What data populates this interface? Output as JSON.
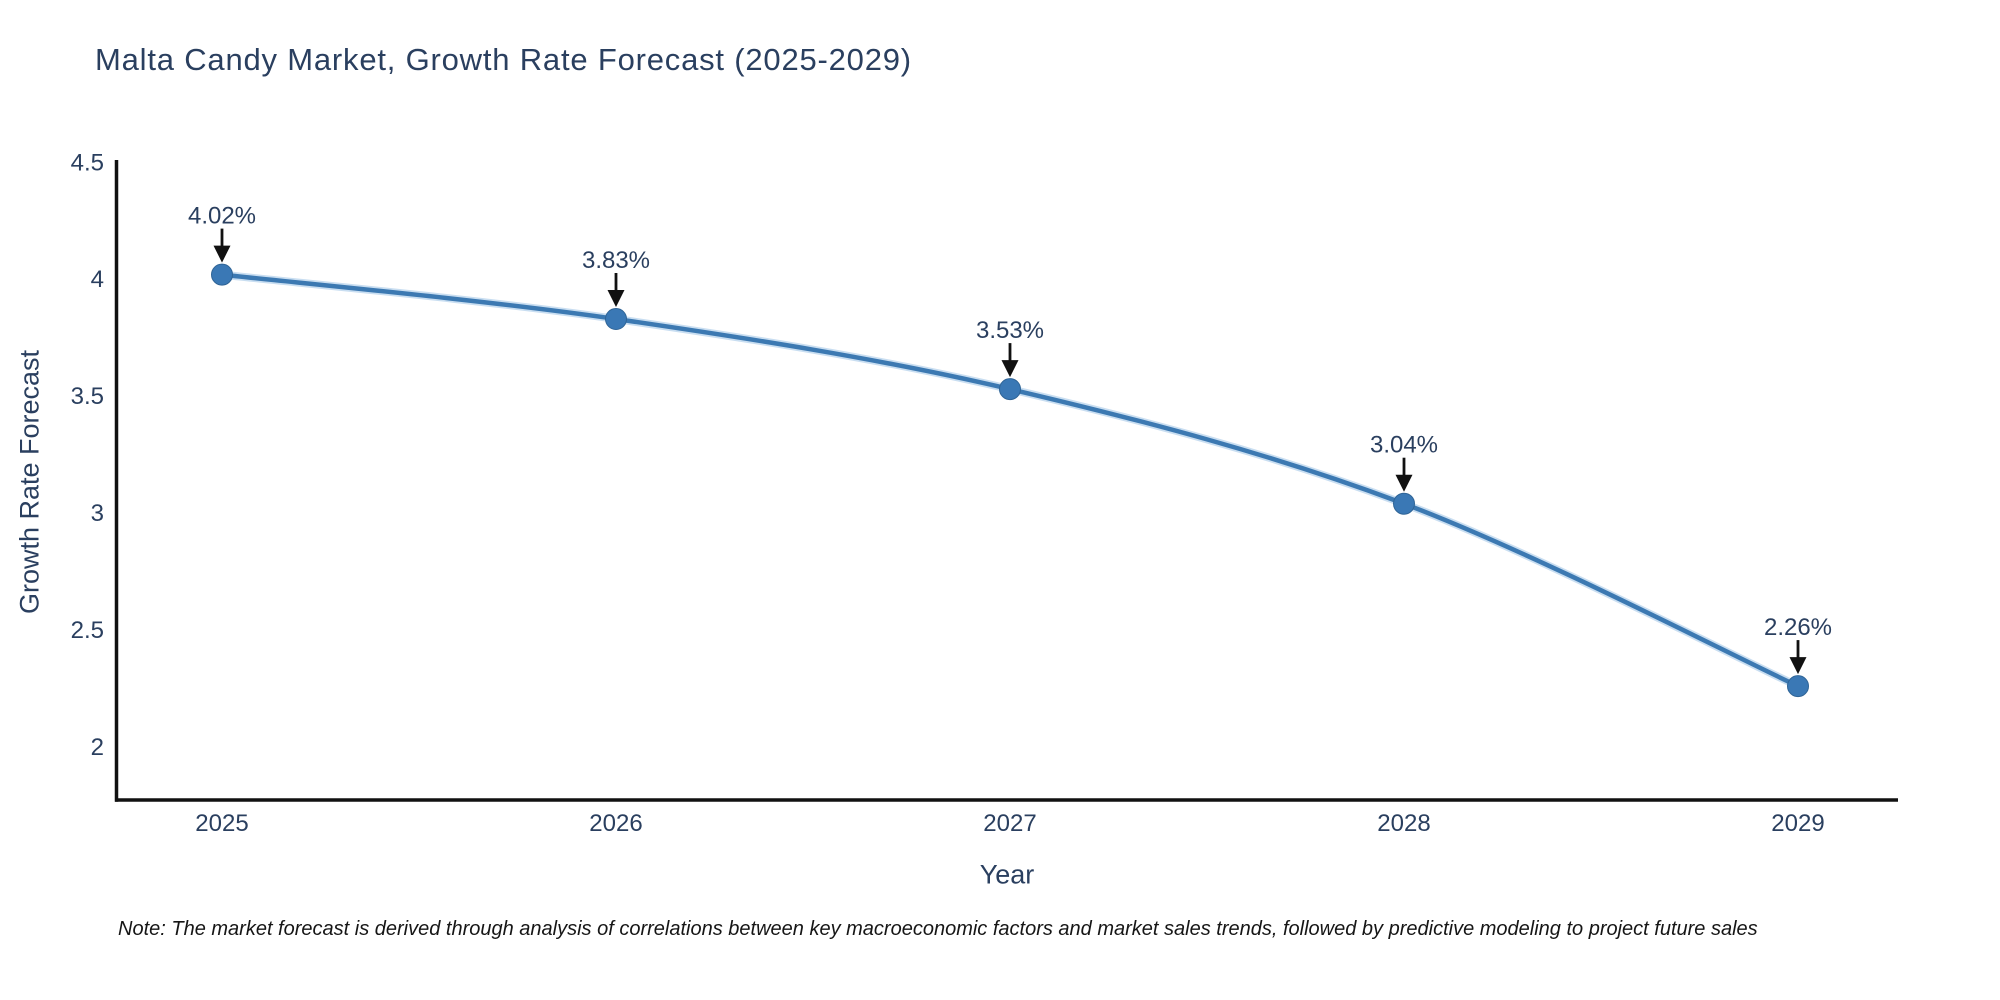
{
  "page": {
    "background": "#ffffff"
  },
  "note": {
    "text": "Note: The market forecast is derived through analysis of correlations between key macroeconomic factors and market sales trends, followed by predictive modeling to project future sales"
  },
  "chart_data": {
    "type": "line",
    "title": "Malta Candy Market, Growth Rate Forecast (2025-2029)",
    "xlabel": "Year",
    "ylabel": "Growth Rate Forecast",
    "categories": [
      "2025",
      "2026",
      "2027",
      "2028",
      "2029"
    ],
    "series": [
      {
        "name": "Growth Rate Forecast",
        "values": [
          4.02,
          3.83,
          3.53,
          3.04,
          2.26
        ],
        "point_labels": [
          "4.02%",
          "3.83%",
          "3.53%",
          "3.04%",
          "2.26%"
        ]
      }
    ],
    "line_shape": "spline",
    "markers": true,
    "annotations_with_arrows": true,
    "grid": false,
    "legend": "none",
    "ylim": [
      1.76,
      4.51
    ],
    "yticks": [
      2,
      2.5,
      3,
      3.5,
      4,
      4.5
    ],
    "ytick_labels": [
      "2",
      "2.5",
      "3",
      "3.5",
      "4",
      "4.5"
    ],
    "colors": {
      "line": "#3c79b2",
      "line_halo": "#9cc2e5",
      "marker": "#3a78b5",
      "marker_edge": "#2f6496",
      "axis": "#111111",
      "text": "#2a3f5f",
      "annotation_arrow": "#111111",
      "background": "#ffffff"
    }
  }
}
